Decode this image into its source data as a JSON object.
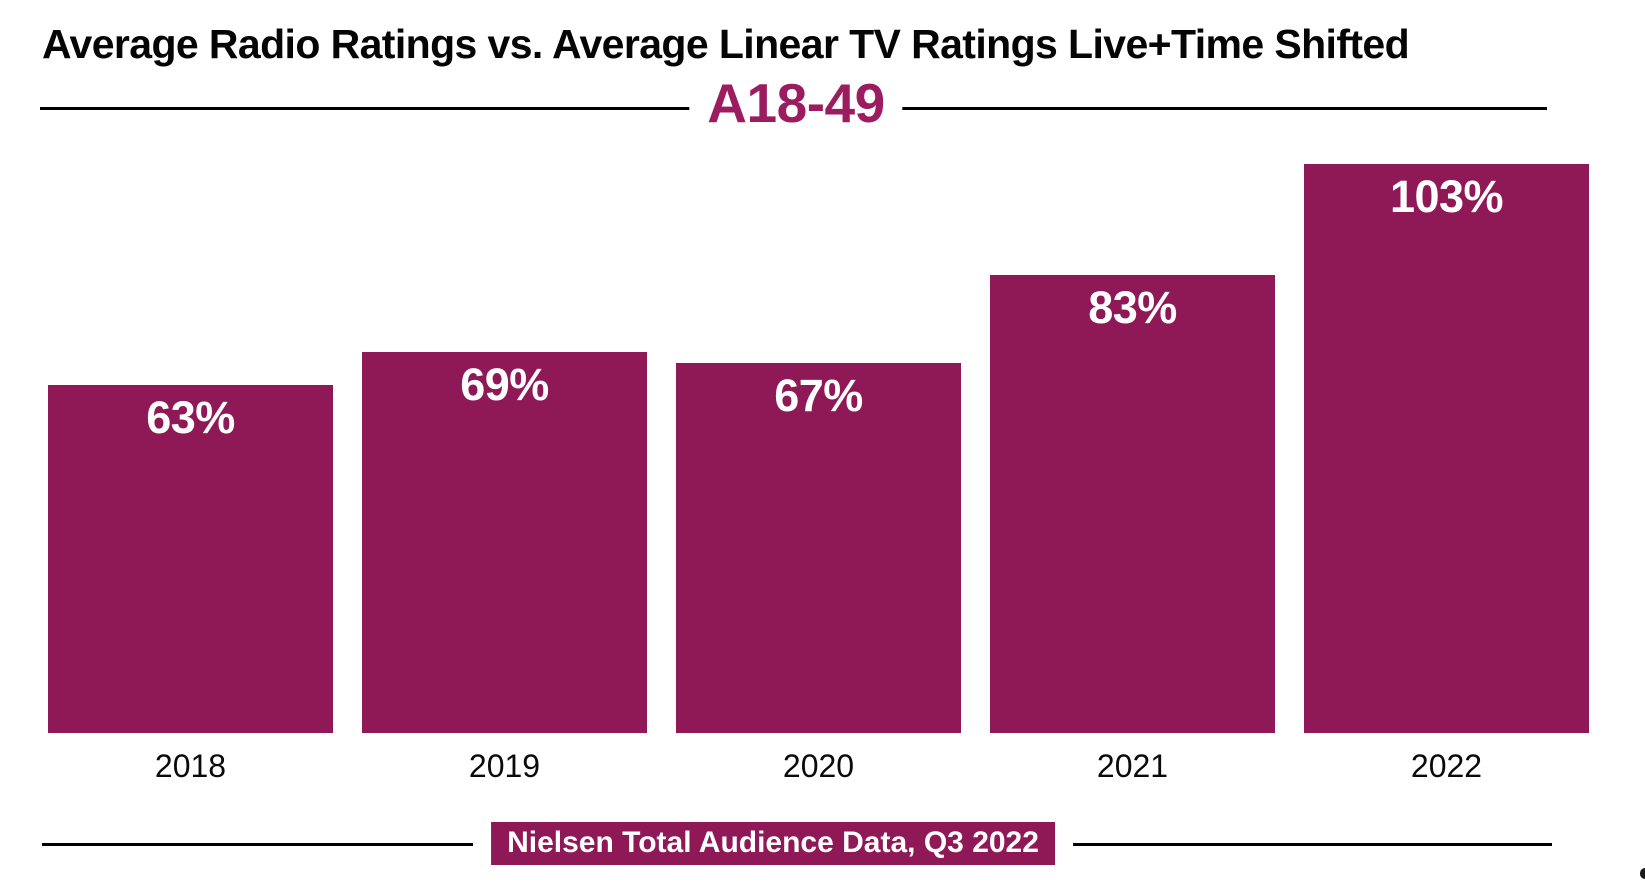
{
  "title": "Average Radio Ratings vs. Average Linear TV Ratings Live+Time Shifted",
  "subtitle": "A18-49",
  "source_label": "Nielsen Total Audience Data, Q3 2022",
  "colors": {
    "accent": "#8E1956",
    "subtitle_text": "#9B1D5F",
    "bar_label_text": "#FFFFFF",
    "title_text": "#050505",
    "divider": "#000000",
    "background": "#FFFFFF"
  },
  "chart_data": {
    "type": "bar",
    "title": "Average Radio Ratings vs. Average Linear TV Ratings Live+Time Shifted",
    "subtitle": "A18-49",
    "categories": [
      "2018",
      "2019",
      "2020",
      "2021",
      "2022"
    ],
    "values": [
      63,
      69,
      67,
      83,
      103
    ],
    "value_labels": [
      "63%",
      "69%",
      "67%",
      "83%",
      "103%"
    ],
    "xlabel": "",
    "ylabel": "",
    "ylim": [
      0,
      110
    ],
    "unit": "%",
    "bar_color": "#8E1956",
    "value_label_position": "inside-top",
    "grid": false,
    "legend": false,
    "source": "Nielsen Total Audience Data, Q3 2022"
  }
}
